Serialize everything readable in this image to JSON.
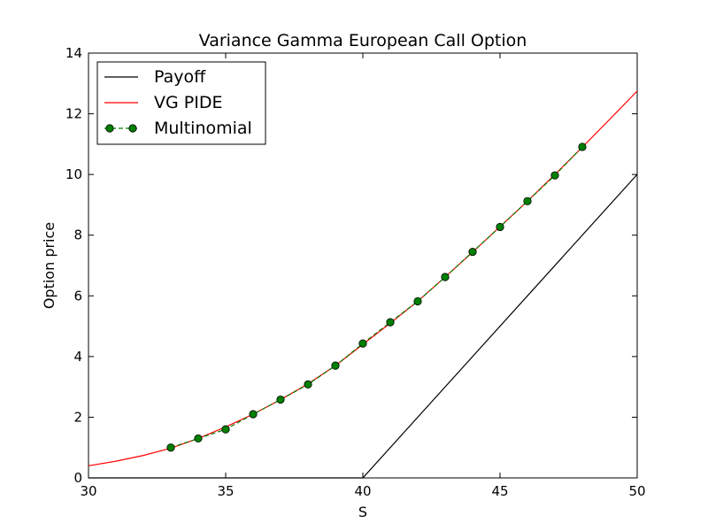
{
  "chart_data": {
    "type": "line",
    "title": "Variance Gamma European Call Option",
    "xlabel": "S",
    "ylabel": "Option price",
    "xlim": [
      30,
      50
    ],
    "ylim": [
      0,
      14
    ],
    "xticks": [
      30,
      35,
      40,
      45,
      50
    ],
    "yticks": [
      0,
      2,
      4,
      6,
      8,
      10,
      12,
      14
    ],
    "grid": false,
    "legend_position": "top-left",
    "series": [
      {
        "name": "Payoff",
        "color": "#000000",
        "style": "solid",
        "marker": "none",
        "x": [
          30,
          40,
          50
        ],
        "y": [
          0,
          0,
          10
        ]
      },
      {
        "name": "VG PIDE",
        "color": "#ff0000",
        "style": "solid",
        "marker": "none",
        "x": [
          30,
          31,
          32,
          33,
          34,
          35,
          36,
          37,
          38,
          39,
          40,
          41,
          42,
          43,
          44,
          45,
          46,
          47,
          48,
          49,
          50
        ],
        "y": [
          0.4,
          0.55,
          0.74,
          0.98,
          1.3,
          1.68,
          2.1,
          2.58,
          3.1,
          3.7,
          4.4,
          5.1,
          5.82,
          6.62,
          7.44,
          8.28,
          9.12,
          10.0,
          10.9,
          11.82,
          12.75
        ]
      },
      {
        "name": "Multinomial",
        "color": "#008000",
        "style": "dashed",
        "marker": "circle",
        "x": [
          33,
          34,
          35,
          36,
          37,
          38,
          39,
          40,
          41,
          42,
          43,
          44,
          45,
          46,
          47,
          48
        ],
        "y": [
          1.0,
          1.3,
          1.6,
          2.1,
          2.58,
          3.08,
          3.7,
          4.43,
          5.13,
          5.82,
          6.62,
          7.45,
          8.27,
          9.12,
          9.97,
          10.91
        ]
      }
    ]
  }
}
